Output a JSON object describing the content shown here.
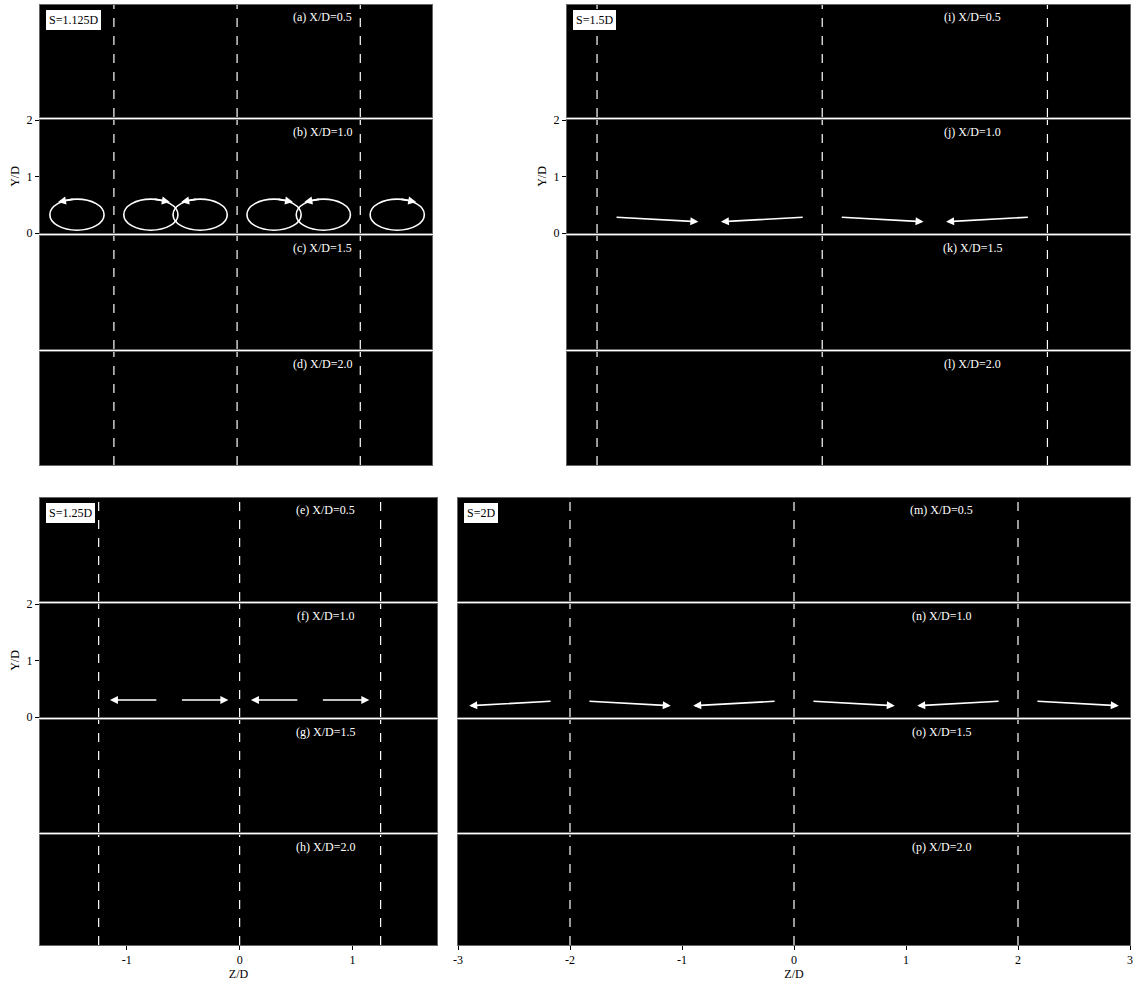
{
  "chart_data": [
    {
      "type": "vector_field",
      "label": "S=1.125D",
      "xlim": [
        -1.8,
        1.78
      ],
      "jet_z": [
        -1.125,
        0,
        1.125
      ],
      "panels": [
        {
          "title": "(a) X/D=0.5",
          "ylim": [
            0,
            2
          ],
          "yticks": [],
          "xticks": []
        },
        {
          "title": "(b) X/D=1.0",
          "ylim": [
            0,
            2
          ],
          "yticks": [
            0,
            1,
            2
          ],
          "y_label": "Y/D",
          "xticks": [],
          "marker": "vortex"
        },
        {
          "title": "(c) X/D=1.5",
          "ylim": [
            0,
            2
          ],
          "yticks": [],
          "xticks": []
        },
        {
          "title": "(d) X/D=2.0",
          "ylim": [
            0,
            2
          ],
          "yticks": [],
          "xticks": []
        }
      ]
    },
    {
      "type": "vector_field",
      "label": "S=1.5D",
      "xlim": [
        -1.7,
        2.05
      ],
      "jet_z": [
        -1.5,
        0,
        1.5
      ],
      "panels": [
        {
          "title": "(i) X/D=0.5",
          "ylim": [
            0,
            2
          ],
          "yticks": [],
          "xticks": []
        },
        {
          "title": "(j) X/D=1.0",
          "ylim": [
            0,
            2
          ],
          "yticks": [
            0,
            1,
            2
          ],
          "y_label": "Y/D",
          "xticks": [],
          "marker": "outward"
        },
        {
          "title": "(k) X/D=1.5",
          "ylim": [
            0,
            2
          ],
          "yticks": [],
          "xticks": []
        },
        {
          "title": "(l) X/D=2.0",
          "ylim": [
            0,
            2
          ],
          "yticks": [],
          "xticks": []
        }
      ]
    },
    {
      "type": "vector_field",
      "label": "S=1.25D",
      "xlim": [
        -1.77,
        1.75
      ],
      "jet_z": [
        -1.25,
        0,
        1.25
      ],
      "panels": [
        {
          "title": "(e) X/D=0.5",
          "ylim": [
            0,
            2
          ],
          "yticks": [],
          "xticks": []
        },
        {
          "title": "(f) X/D=1.0",
          "ylim": [
            0,
            2
          ],
          "yticks": [
            0,
            1,
            2
          ],
          "y_label": "Y/D",
          "xticks": [],
          "marker": "inward"
        },
        {
          "title": "(g) X/D=1.5",
          "ylim": [
            0,
            2
          ],
          "yticks": [],
          "xticks": []
        },
        {
          "title": "(h) X/D=2.0",
          "ylim": [
            0,
            2
          ],
          "yticks": [],
          "xticks": [
            -1,
            0,
            1
          ],
          "x_label": "Z/D"
        }
      ]
    },
    {
      "type": "vector_field",
      "label": "S=2D",
      "xlim": [
        -3,
        3
      ],
      "jet_z": [
        -2,
        0,
        2
      ],
      "panels": [
        {
          "title": "(m) X/D=0.5",
          "ylim": [
            0,
            2
          ],
          "yticks": [],
          "xticks": []
        },
        {
          "title": "(n) X/D=1.0",
          "ylim": [
            0,
            2
          ],
          "yticks": [],
          "xticks": [],
          "marker": "outward"
        },
        {
          "title": "(o) X/D=1.5",
          "ylim": [
            0,
            2
          ],
          "yticks": [],
          "xticks": []
        },
        {
          "title": "(p) X/D=2.0",
          "ylim": [
            0,
            2
          ],
          "yticks": [],
          "xticks": [
            -3,
            -2,
            -1,
            0,
            1,
            2,
            3
          ],
          "x_label": "Z/D"
        }
      ]
    }
  ]
}
